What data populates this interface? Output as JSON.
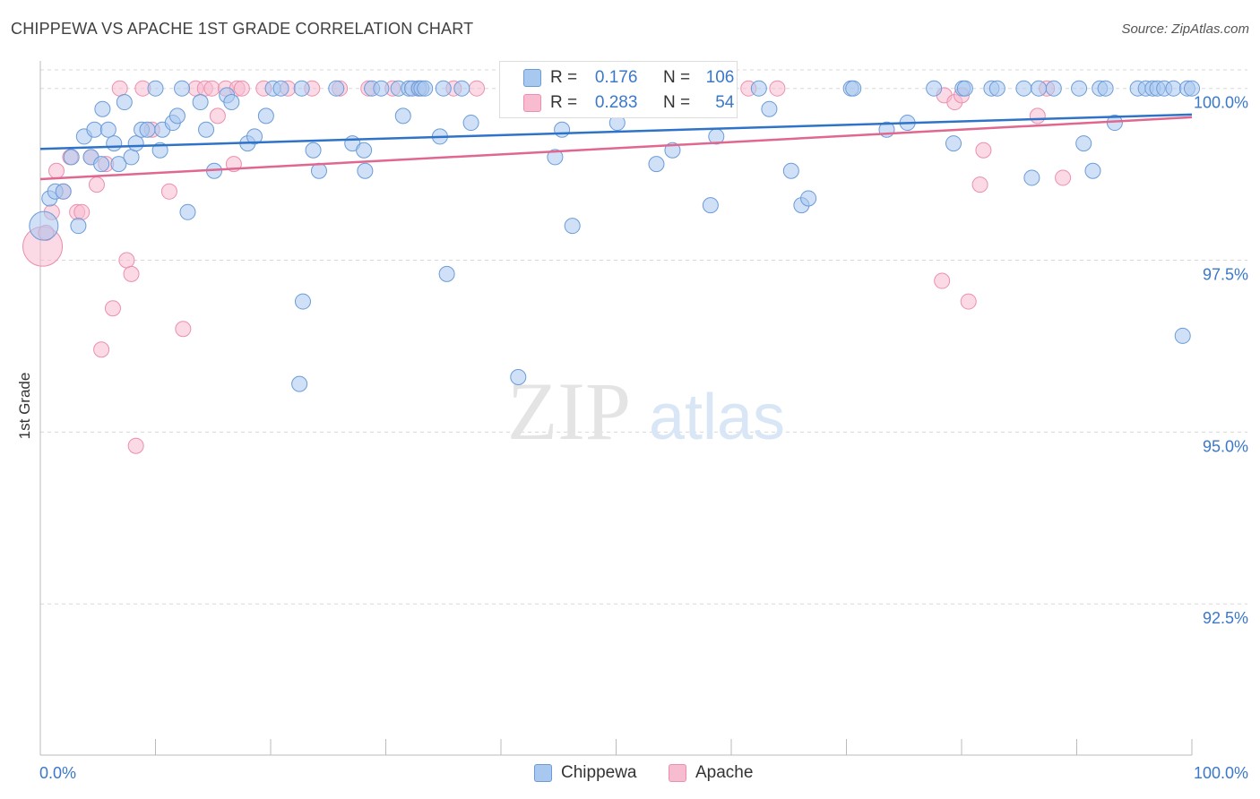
{
  "title": "CHIPPEWA VS APACHE 1ST GRADE CORRELATION CHART",
  "source": "Source: ZipAtlas.com",
  "watermark": {
    "zip": "ZIP",
    "atlas": "atlas"
  },
  "colors": {
    "chippewa_fill": "#a9c8f0",
    "chippewa_stroke": "#6b9bd8",
    "chippewa_line": "#2f73c9",
    "apache_fill": "#f8bcd0",
    "apache_stroke": "#ec8fae",
    "apache_line": "#e0678f",
    "axis_label": "#3a78c9"
  },
  "legend_top": {
    "rows": [
      {
        "r_label": "R =",
        "r_value": "0.176",
        "n_label": "N =",
        "n_value": "106"
      },
      {
        "r_label": "R =",
        "r_value": "0.283",
        "n_label": "N =",
        "n_value": "54"
      }
    ]
  },
  "chart_data": {
    "type": "scatter",
    "title": "CHIPPEWA VS APACHE 1ST GRADE CORRELATION CHART",
    "xlabel": "",
    "ylabel": "1st Grade",
    "xlim": [
      0,
      100
    ],
    "ylim": [
      90.3,
      100.4
    ],
    "x_tick_labels": [
      "0.0%",
      "100.0%"
    ],
    "y_ticks": [
      92.5,
      95.0,
      97.5,
      100.0
    ],
    "y_tick_labels": [
      "92.5%",
      "95.0%",
      "97.5%",
      "100.0%"
    ],
    "grid": true,
    "series": [
      {
        "name": "Chippewa",
        "trend": {
          "x": [
            0,
            100
          ],
          "y": [
            99.12,
            99.62
          ]
        },
        "points": [
          [
            0.3,
            98.0
          ],
          [
            0.8,
            98.4
          ],
          [
            1.3,
            98.5
          ],
          [
            2.0,
            98.5
          ],
          [
            2.7,
            99.0
          ],
          [
            3.3,
            98.0
          ],
          [
            3.8,
            99.3
          ],
          [
            4.4,
            99.0
          ],
          [
            4.7,
            99.4
          ],
          [
            5.3,
            98.9
          ],
          [
            5.4,
            99.7
          ],
          [
            5.9,
            99.4
          ],
          [
            6.4,
            99.2
          ],
          [
            6.8,
            98.9
          ],
          [
            7.3,
            99.8
          ],
          [
            7.9,
            99.0
          ],
          [
            8.3,
            99.2
          ],
          [
            8.8,
            99.4
          ],
          [
            9.3,
            99.4
          ],
          [
            10.0,
            100.0
          ],
          [
            10.4,
            99.1
          ],
          [
            10.6,
            99.4
          ],
          [
            11.5,
            99.5
          ],
          [
            11.9,
            99.6
          ],
          [
            12.3,
            100.0
          ],
          [
            12.8,
            98.2
          ],
          [
            13.9,
            99.8
          ],
          [
            14.4,
            99.4
          ],
          [
            15.1,
            98.8
          ],
          [
            16.2,
            99.9
          ],
          [
            16.6,
            99.8
          ],
          [
            18.0,
            99.2
          ],
          [
            18.6,
            99.3
          ],
          [
            19.6,
            99.6
          ],
          [
            20.2,
            100.0
          ],
          [
            20.9,
            100.0
          ],
          [
            22.7,
            100.0
          ],
          [
            22.5,
            95.7
          ],
          [
            22.8,
            96.9
          ],
          [
            23.7,
            99.1
          ],
          [
            24.2,
            98.8
          ],
          [
            25.7,
            100.0
          ],
          [
            27.1,
            99.2
          ],
          [
            28.1,
            99.1
          ],
          [
            28.2,
            98.8
          ],
          [
            28.8,
            100.0
          ],
          [
            29.6,
            100.0
          ],
          [
            31.1,
            100.0
          ],
          [
            31.5,
            99.6
          ],
          [
            32.0,
            100.0
          ],
          [
            32.3,
            100.0
          ],
          [
            32.9,
            100.0
          ],
          [
            33.1,
            100.0
          ],
          [
            33.4,
            100.0
          ],
          [
            34.7,
            99.3
          ],
          [
            35.3,
            97.3
          ],
          [
            36.6,
            100.0
          ],
          [
            37.4,
            99.5
          ],
          [
            40.8,
            100.0
          ],
          [
            41.5,
            95.8
          ],
          [
            44.7,
            99.0
          ],
          [
            45.3,
            99.4
          ],
          [
            46.2,
            98.0
          ],
          [
            49.2,
            100.0
          ],
          [
            50.1,
            99.5
          ],
          [
            53.1,
            100.0
          ],
          [
            53.5,
            98.9
          ],
          [
            54.3,
            100.0
          ],
          [
            54.9,
            99.1
          ],
          [
            58.2,
            98.3
          ],
          [
            58.7,
            99.3
          ],
          [
            62.4,
            100.0
          ],
          [
            63.3,
            99.7
          ],
          [
            65.2,
            98.8
          ],
          [
            66.1,
            98.3
          ],
          [
            66.7,
            98.4
          ],
          [
            70.4,
            100.0
          ],
          [
            70.6,
            100.0
          ],
          [
            73.5,
            99.4
          ],
          [
            75.3,
            99.5
          ],
          [
            77.6,
            100.0
          ],
          [
            79.3,
            99.2
          ],
          [
            80.1,
            100.0
          ],
          [
            80.3,
            100.0
          ],
          [
            82.6,
            100.0
          ],
          [
            83.1,
            100.0
          ],
          [
            85.4,
            100.0
          ],
          [
            86.1,
            98.7
          ],
          [
            86.7,
            100.0
          ],
          [
            88.0,
            100.0
          ],
          [
            90.2,
            100.0
          ],
          [
            90.6,
            99.2
          ],
          [
            91.4,
            98.8
          ],
          [
            92.0,
            100.0
          ],
          [
            92.5,
            100.0
          ],
          [
            93.3,
            99.5
          ],
          [
            95.3,
            100.0
          ],
          [
            96.0,
            100.0
          ],
          [
            96.6,
            100.0
          ],
          [
            97.0,
            100.0
          ],
          [
            97.6,
            100.0
          ],
          [
            98.4,
            100.0
          ],
          [
            99.2,
            96.4
          ],
          [
            99.6,
            100.0
          ],
          [
            100.0,
            100.0
          ],
          [
            35.0,
            100.0
          ]
        ]
      },
      {
        "name": "Apache",
        "trend": {
          "x": [
            0,
            100
          ],
          "y": [
            98.68,
            99.58
          ]
        },
        "points": [
          [
            0.2,
            97.7
          ],
          [
            0.5,
            97.9
          ],
          [
            1.0,
            98.2
          ],
          [
            1.4,
            98.8
          ],
          [
            2.0,
            98.5
          ],
          [
            2.6,
            99.0
          ],
          [
            3.2,
            98.2
          ],
          [
            3.6,
            98.2
          ],
          [
            4.4,
            99.0
          ],
          [
            4.9,
            98.6
          ],
          [
            5.3,
            96.2
          ],
          [
            5.7,
            98.9
          ],
          [
            6.3,
            96.8
          ],
          [
            6.9,
            100.0
          ],
          [
            7.5,
            97.5
          ],
          [
            7.9,
            97.3
          ],
          [
            8.3,
            94.8
          ],
          [
            8.9,
            100.0
          ],
          [
            9.7,
            99.4
          ],
          [
            11.2,
            98.5
          ],
          [
            12.4,
            96.5
          ],
          [
            13.5,
            100.0
          ],
          [
            14.3,
            100.0
          ],
          [
            14.9,
            100.0
          ],
          [
            15.4,
            99.6
          ],
          [
            16.1,
            100.0
          ],
          [
            16.8,
            98.9
          ],
          [
            17.1,
            100.0
          ],
          [
            17.5,
            100.0
          ],
          [
            19.4,
            100.0
          ],
          [
            21.5,
            100.0
          ],
          [
            23.6,
            100.0
          ],
          [
            26.0,
            100.0
          ],
          [
            28.5,
            100.0
          ],
          [
            30.6,
            100.0
          ],
          [
            32.8,
            100.0
          ],
          [
            35.9,
            100.0
          ],
          [
            37.9,
            100.0
          ],
          [
            41.6,
            100.0
          ],
          [
            45.6,
            100.0
          ],
          [
            50.5,
            100.0
          ],
          [
            54.7,
            100.0
          ],
          [
            61.5,
            100.0
          ],
          [
            64.0,
            100.0
          ],
          [
            78.3,
            97.2
          ],
          [
            78.5,
            99.9
          ],
          [
            79.4,
            99.8
          ],
          [
            80.0,
            99.9
          ],
          [
            80.6,
            96.9
          ],
          [
            81.9,
            99.1
          ],
          [
            81.6,
            98.6
          ],
          [
            86.6,
            99.6
          ],
          [
            87.4,
            100.0
          ],
          [
            88.8,
            98.7
          ]
        ]
      }
    ]
  },
  "bottom_legend": [
    {
      "label": "Chippewa"
    },
    {
      "label": "Apache"
    }
  ]
}
